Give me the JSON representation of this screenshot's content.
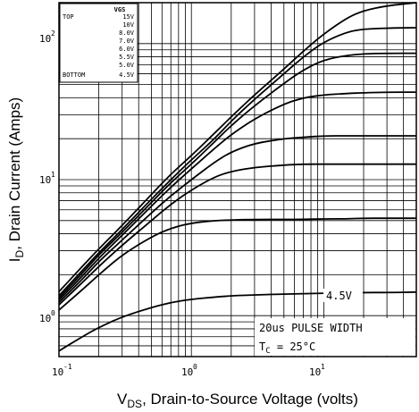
{
  "chart_data": {
    "type": "line",
    "xlabel_main": "V",
    "xlabel_sub": "DS",
    "xlabel_rest": ", Drain-to-Source Voltage (volts)",
    "ylabel_main": "I",
    "ylabel_sub": "D",
    "ylabel_rest": ", Drain Current (Amps)",
    "xscale": "log",
    "yscale": "log",
    "xlim": [
      0.1,
      50
    ],
    "ylim": [
      0.5,
      200
    ],
    "x_ticks": [
      {
        "base": "10",
        "exp": "-1",
        "value": 0.1
      },
      {
        "base": "10",
        "exp": "0",
        "value": 1
      },
      {
        "base": "10",
        "exp": "1",
        "value": 10
      }
    ],
    "y_ticks": [
      {
        "base": "10",
        "exp": "0",
        "value": 1
      },
      {
        "base": "10",
        "exp": "1",
        "value": 10
      },
      {
        "base": "10",
        "exp": "2",
        "value": 100
      }
    ],
    "grid": true,
    "legend": {
      "header": "VGS",
      "rows": [
        {
          "label": "TOP",
          "value": "15V"
        },
        {
          "label": "",
          "value": "10V"
        },
        {
          "label": "",
          "value": "8.0V"
        },
        {
          "label": "",
          "value": "7.0V"
        },
        {
          "label": "",
          "value": "6.0V"
        },
        {
          "label": "",
          "value": "5.5V"
        },
        {
          "label": "",
          "value": "5.0V"
        },
        {
          "label": "BOTTOM",
          "value": "4.5V"
        }
      ]
    },
    "annotations": {
      "curve_label": "4.5V",
      "pulse": "20us PULSE WIDTH",
      "temp_prefix": "T",
      "temp_sub": "C",
      "temp_value": " = 25°C"
    },
    "x": [
      0.1,
      0.15,
      0.2,
      0.3,
      0.5,
      0.7,
      1,
      1.5,
      2,
      3,
      5,
      7,
      10,
      15,
      20,
      30,
      50
    ],
    "series": [
      {
        "name": "15V",
        "values": [
          1.5,
          2.3,
          3.1,
          4.6,
          7.8,
          11,
          15,
          22,
          29,
          42,
          65,
          88,
          118,
          155,
          175,
          190,
          200
        ]
      },
      {
        "name": "10V",
        "values": [
          1.4,
          2.15,
          2.9,
          4.3,
          7.2,
          10,
          14,
          20,
          27,
          39,
          60,
          80,
          103,
          122,
          128,
          130,
          131
        ]
      },
      {
        "name": "8.0V",
        "values": [
          1.35,
          2.05,
          2.8,
          4.1,
          6.8,
          9.5,
          13,
          19,
          25,
          35,
          51,
          64,
          76,
          82,
          84,
          85,
          85
        ]
      },
      {
        "name": "7.0V",
        "values": [
          1.3,
          1.95,
          2.65,
          3.9,
          6.4,
          8.8,
          12,
          17,
          21.5,
          28,
          36,
          40,
          42,
          43,
          43.5,
          44,
          44
        ]
      },
      {
        "name": "6.0V",
        "values": [
          1.25,
          1.85,
          2.5,
          3.6,
          5.7,
          7.6,
          10,
          13.5,
          16,
          18.5,
          20,
          20.5,
          21,
          21,
          21,
          21,
          21
        ]
      },
      {
        "name": "5.5V",
        "values": [
          1.2,
          1.75,
          2.3,
          3.3,
          5.0,
          6.6,
          8.4,
          10.5,
          11.5,
          12.3,
          12.8,
          13,
          13,
          13,
          13,
          13,
          13
        ]
      },
      {
        "name": "5.0V",
        "values": [
          1.1,
          1.55,
          2.0,
          2.8,
          3.8,
          4.4,
          4.8,
          5.0,
          5.05,
          5.1,
          5.1,
          5.1,
          5.15,
          5.15,
          5.2,
          5.2,
          5.2
        ]
      },
      {
        "name": "4.5V",
        "values": [
          0.55,
          0.7,
          0.82,
          0.98,
          1.15,
          1.25,
          1.32,
          1.37,
          1.4,
          1.42,
          1.44,
          1.45,
          1.46,
          1.47,
          1.48,
          1.48,
          1.49
        ]
      }
    ]
  }
}
